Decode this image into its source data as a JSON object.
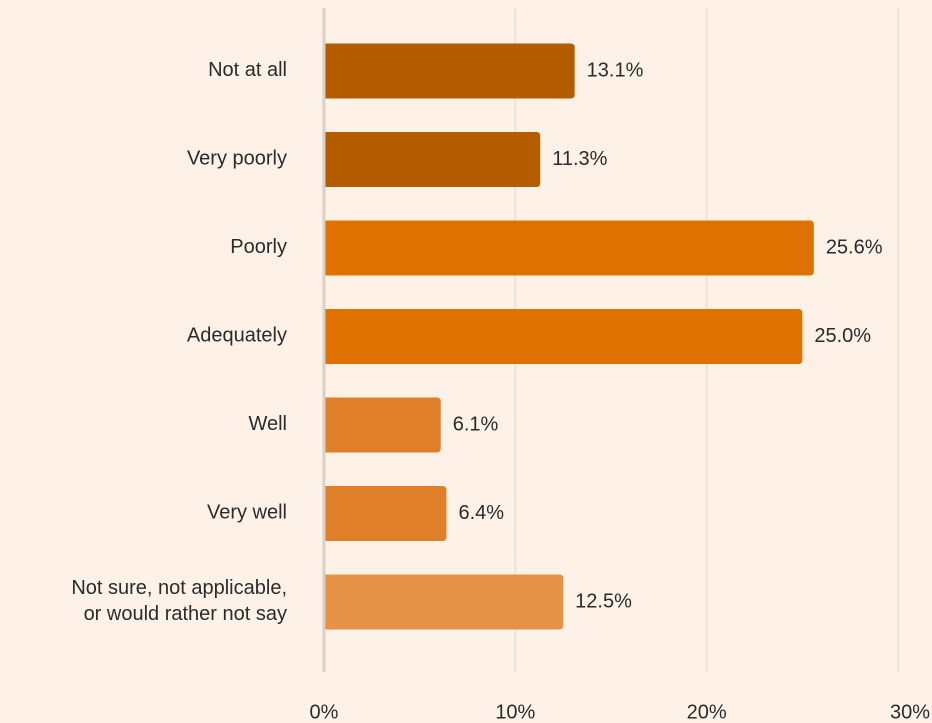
{
  "chart_data": {
    "type": "bar",
    "orientation": "horizontal",
    "categories": [
      "Not at all",
      "Very poorly",
      "Poorly",
      "Adequately",
      "Well",
      "Very well",
      "Not sure, not applicable,\nor would rather not say"
    ],
    "values": [
      13.1,
      11.3,
      25.6,
      25.0,
      6.1,
      6.4,
      12.5
    ],
    "value_labels": [
      "13.1%",
      "11.3%",
      "25.6%",
      "25.0%",
      "6.1%",
      "6.4%",
      "12.5%"
    ],
    "bar_colors": [
      "#b35c00",
      "#b35c00",
      "#df7100",
      "#df7100",
      "#e07f2a",
      "#e07f2a",
      "#e69246"
    ],
    "xlim": [
      0,
      30
    ],
    "x_ticks": [
      0,
      10,
      20,
      30
    ],
    "x_tick_labels": [
      "0%",
      "10%",
      "20%",
      "30%"
    ],
    "grid": "vertical",
    "legend": "none",
    "title": "",
    "xlabel": "",
    "ylabel": ""
  },
  "colors": {
    "background": "#fdf1e8",
    "grid": "#e9dfd7",
    "axis": "#d9d0c8",
    "text": "#2b2b2b"
  }
}
